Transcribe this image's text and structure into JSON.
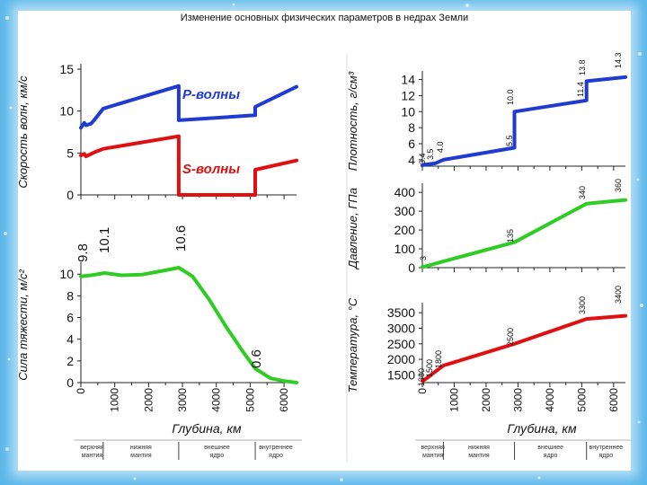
{
  "page_title": "Изменение основных физических параметров в недрах Земли",
  "layers": [
    "верхняя мантия",
    "нижняя мантия",
    "внешнее ядро",
    "внутреннее ядро"
  ],
  "depth_label": "Глубина, км",
  "chart_data": [
    {
      "id": "velocity",
      "type": "line",
      "ylabel": "Скорость волн, км/с",
      "xlim": [
        0,
        6370
      ],
      "ylim": [
        0,
        15
      ],
      "yticks": [
        "0",
        "5",
        "10",
        "15"
      ],
      "series": [
        {
          "name": "P-волны",
          "color": "#1f3bd1",
          "x": [
            0,
            100,
            150,
            300,
            410,
            660,
            2890,
            2890,
            5150,
            5150,
            6370
          ],
          "y": [
            8.0,
            8.6,
            8.3,
            8.5,
            9.0,
            10.3,
            13.0,
            8.9,
            9.5,
            10.5,
            12.9
          ]
        },
        {
          "name": "S-волны",
          "color": "#e01010",
          "x": [
            0,
            100,
            150,
            410,
            660,
            2890,
            2890,
            5150,
            5150,
            6370
          ],
          "y": [
            4.7,
            4.9,
            4.6,
            5.1,
            5.5,
            7.0,
            0,
            0,
            3.0,
            4.1
          ]
        }
      ]
    },
    {
      "id": "gravity",
      "type": "line",
      "ylabel": "Сила тяжести, м/с²",
      "xlim": [
        0,
        6370
      ],
      "ylim": [
        0,
        10.6
      ],
      "yticks": [
        "0",
        "2",
        "4",
        "6",
        "8",
        "10"
      ],
      "xticks": [
        "0",
        "1000",
        "2000",
        "3000",
        "4000",
        "5000",
        "6000"
      ],
      "annotations": [
        "9.8",
        "10.1",
        "10.6",
        "0.6"
      ],
      "series": [
        {
          "color": "#2fcc25",
          "x": [
            0,
            300,
            700,
            1200,
            1800,
            2400,
            2890,
            3300,
            3800,
            4300,
            4800,
            5150,
            5600,
            6000,
            6370
          ],
          "y": [
            9.8,
            9.9,
            10.1,
            9.9,
            9.95,
            10.3,
            10.6,
            9.8,
            7.6,
            5.1,
            2.8,
            1.3,
            0.4,
            0.15,
            0
          ]
        }
      ]
    },
    {
      "id": "density",
      "type": "line",
      "ylabel": "Плотность, г/см³",
      "xlim": [
        0,
        6370
      ],
      "ylim": [
        3.2,
        14.4
      ],
      "yticks": [
        "4",
        "6",
        "8",
        "10",
        "12",
        "14"
      ],
      "annotations": [
        "3.4",
        "3.5",
        "4.0",
        "5.5",
        "10.0",
        "11.4",
        "13.8",
        "14.3"
      ],
      "series": [
        {
          "color": "#1f3bd1",
          "x": [
            0,
            100,
            400,
            660,
            2890,
            2890,
            5150,
            5150,
            6370
          ],
          "y": [
            3.3,
            3.4,
            3.55,
            4.0,
            5.5,
            10.0,
            11.4,
            13.8,
            14.3
          ]
        }
      ]
    },
    {
      "id": "pressure",
      "type": "line",
      "ylabel": "Давление, ГПа",
      "xlim": [
        0,
        6370
      ],
      "ylim": [
        0,
        420
      ],
      "yticks": [
        "0",
        "100",
        "200",
        "300",
        "400"
      ],
      "annotations": [
        "3",
        "135",
        "340",
        "360"
      ],
      "series": [
        {
          "color": "#2fcc25",
          "x": [
            0,
            2890,
            5150,
            6370
          ],
          "y": [
            3,
            135,
            340,
            360
          ]
        }
      ]
    },
    {
      "id": "temperature",
      "type": "line",
      "ylabel": "Температура, °С",
      "xlim": [
        0,
        6370
      ],
      "ylim": [
        1250,
        3650
      ],
      "yticks": [
        "1500",
        "2000",
        "2500",
        "3000",
        "3500"
      ],
      "xticks": [
        "0",
        "1000",
        "2000",
        "3000",
        "4000",
        "5000",
        "6000"
      ],
      "annotations": [
        "1300",
        "1500",
        "1800",
        "2500",
        "3300",
        "3400"
      ],
      "series": [
        {
          "color": "#e01010",
          "x": [
            0,
            150,
            400,
            660,
            2890,
            5150,
            6370
          ],
          "y": [
            1300,
            1400,
            1600,
            1800,
            2500,
            3300,
            3400
          ]
        }
      ]
    }
  ]
}
